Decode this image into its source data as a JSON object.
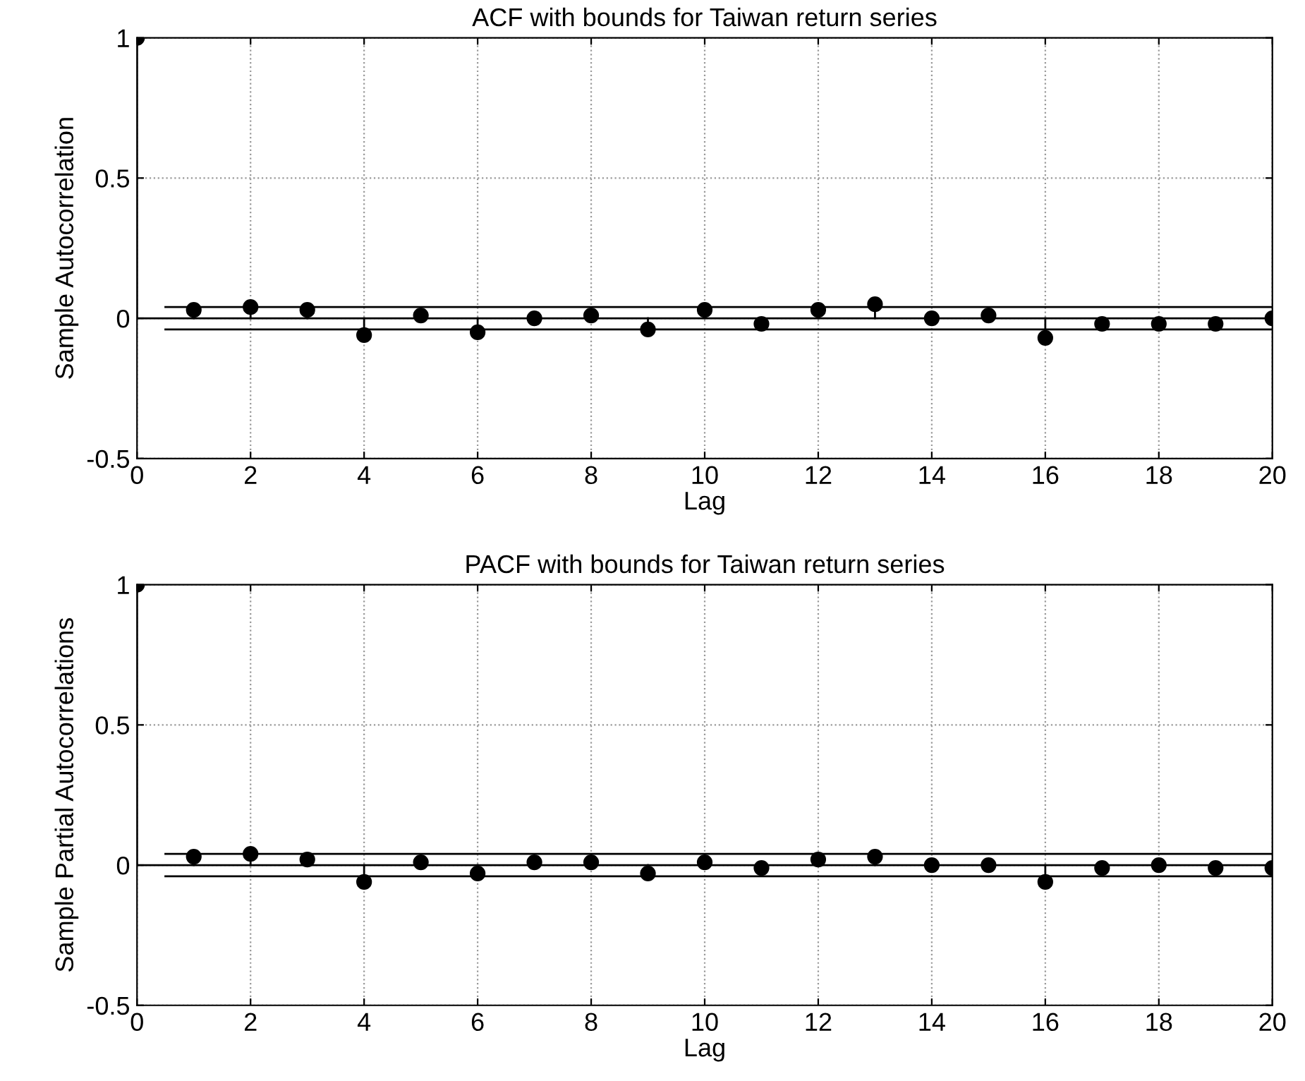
{
  "chart_data": [
    {
      "type": "lollipop",
      "title": "ACF with bounds for Taiwan return series",
      "xlabel": "Lag",
      "ylabel": "Sample Autocorrelation",
      "x": [
        0,
        1,
        2,
        3,
        4,
        5,
        6,
        7,
        8,
        9,
        10,
        11,
        12,
        13,
        14,
        15,
        16,
        17,
        18,
        19,
        20
      ],
      "series": [
        {
          "color": "#000000",
          "values": [
            1,
            0.03,
            0.04,
            0.03,
            -0.06,
            0.01,
            -0.05,
            0.0,
            0.01,
            -0.04,
            0.03,
            -0.02,
            0.03,
            0.05,
            0.0,
            0.01,
            -0.07,
            -0.02,
            -0.02,
            -0.02,
            0.0
          ]
        }
      ],
      "xlim": [
        0,
        20
      ],
      "xticks": [
        0,
        2,
        4,
        6,
        8,
        10,
        12,
        14,
        16,
        18,
        20
      ],
      "ylim": [
        -0.5,
        1
      ],
      "yticks": [
        -0.5,
        0,
        0.5,
        1
      ],
      "ref_lines": [
        {
          "axis": "y",
          "value": 0.04,
          "color": "#000000",
          "line_style": "solid"
        },
        {
          "axis": "y",
          "value": -0.04,
          "color": "#000000",
          "line_style": "solid"
        }
      ],
      "grid": true,
      "marker": "circle"
    },
    {
      "type": "lollipop",
      "title": "PACF with bounds for Taiwan return series",
      "xlabel": "Lag",
      "ylabel": "Sample Partial Autocorrelations",
      "x": [
        0,
        1,
        2,
        3,
        4,
        5,
        6,
        7,
        8,
        9,
        10,
        11,
        12,
        13,
        14,
        15,
        16,
        17,
        18,
        19,
        20
      ],
      "series": [
        {
          "color": "#000000",
          "values": [
            1,
            0.03,
            0.04,
            0.02,
            -0.06,
            0.01,
            -0.03,
            0.01,
            0.01,
            -0.03,
            0.01,
            -0.01,
            0.02,
            0.03,
            0.0,
            0.0,
            -0.06,
            -0.01,
            0.0,
            -0.01,
            -0.01
          ]
        }
      ],
      "xlim": [
        0,
        20
      ],
      "xticks": [
        0,
        2,
        4,
        6,
        8,
        10,
        12,
        14,
        16,
        18,
        20
      ],
      "ylim": [
        -0.5,
        1
      ],
      "yticks": [
        -0.5,
        0,
        0.5,
        1
      ],
      "ref_lines": [
        {
          "axis": "y",
          "value": 0.04,
          "color": "#000000",
          "line_style": "solid"
        },
        {
          "axis": "y",
          "value": -0.04,
          "color": "#000000",
          "line_style": "solid"
        }
      ],
      "grid": true,
      "marker": "circle"
    }
  ]
}
